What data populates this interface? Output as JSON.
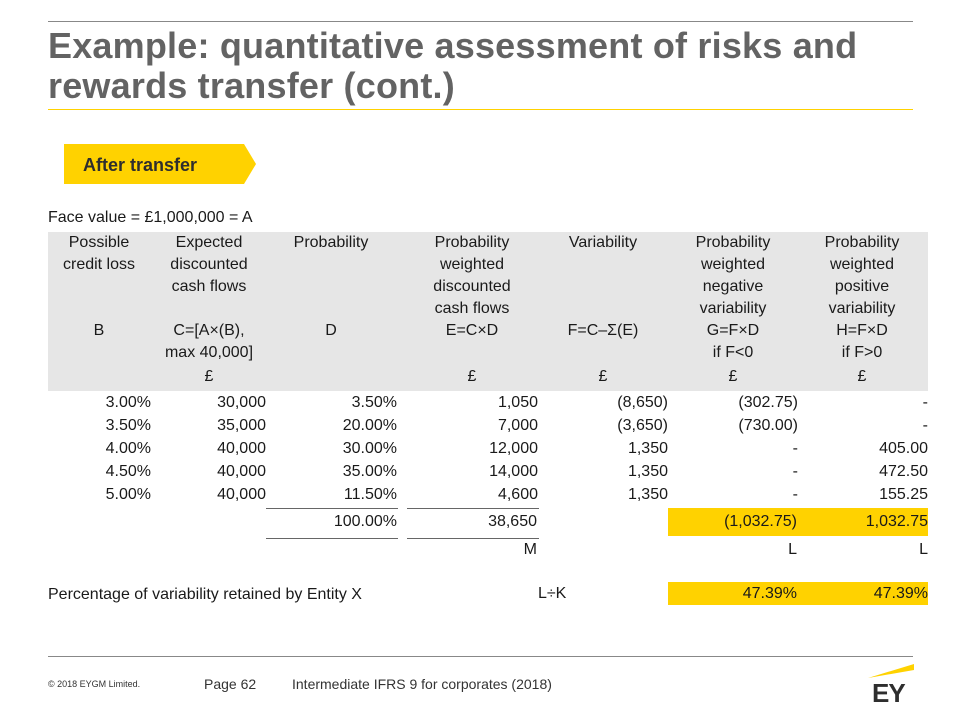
{
  "title": "Example: quantitative assessment of risks and rewards transfer (cont.)",
  "section_tag": "After transfer",
  "face_value": "Face value = £1,000,000 = A",
  "headers": [
    {
      "label": "Possible\ncredit loss",
      "formula": "B",
      "unit": ""
    },
    {
      "label": "Expected\ndiscounted\ncash flows",
      "formula": "C=[A×(B),\nmax 40,000]",
      "unit": "£"
    },
    {
      "label": "Probability",
      "formula": "D",
      "unit": ""
    },
    {
      "label": "Probability\nweighted\ndiscounted\ncash flows",
      "formula": "E=C×D",
      "unit": "£"
    },
    {
      "label": "Variability",
      "formula": "F=C–Σ(E)",
      "unit": "£"
    },
    {
      "label": "Probability\nweighted\nnegative\nvariability",
      "formula": "G=F×D\nif F<0",
      "unit": "£"
    },
    {
      "label": "Probability\nweighted\npositive\nvariability",
      "formula": "H=F×D\nif F>0",
      "unit": "£"
    }
  ],
  "rows": [
    [
      "3.00%",
      "30,000",
      "3.50%",
      "1,050",
      "(8,650)",
      "(302.75)",
      "-"
    ],
    [
      "3.50%",
      "35,000",
      "20.00%",
      "7,000",
      "(3,650)",
      "(730.00)",
      "-"
    ],
    [
      "4.00%",
      "40,000",
      "30.00%",
      "12,000",
      "1,350",
      "-",
      "405.00"
    ],
    [
      "4.50%",
      "40,000",
      "35.00%",
      "14,000",
      "1,350",
      "-",
      "472.50"
    ],
    [
      "5.00%",
      "40,000",
      "11.50%",
      "4,600",
      "1,350",
      "-",
      "155.25"
    ]
  ],
  "totals": {
    "probability": "100.00%",
    "pw_cash_flows": "38,650",
    "neg_var": "(1,032.75)",
    "pos_var": "1,032.75"
  },
  "total_labels": {
    "pw_cash_flows": "M",
    "neg_var": "L",
    "pos_var": "L"
  },
  "percentage": {
    "label": "Percentage of variability retained by Entity X",
    "formula": "L÷K",
    "neg": "47.39%",
    "pos": "47.39%"
  },
  "footer": {
    "copyright": "© 2018 EYGM Limited.",
    "page": "Page 62",
    "course": "Intermediate IFRS 9 for corporates (2018)",
    "logo": "EY"
  },
  "colors": {
    "accent": "#ffd200",
    "title": "#636363",
    "header_bg": "#e6e6e6"
  }
}
